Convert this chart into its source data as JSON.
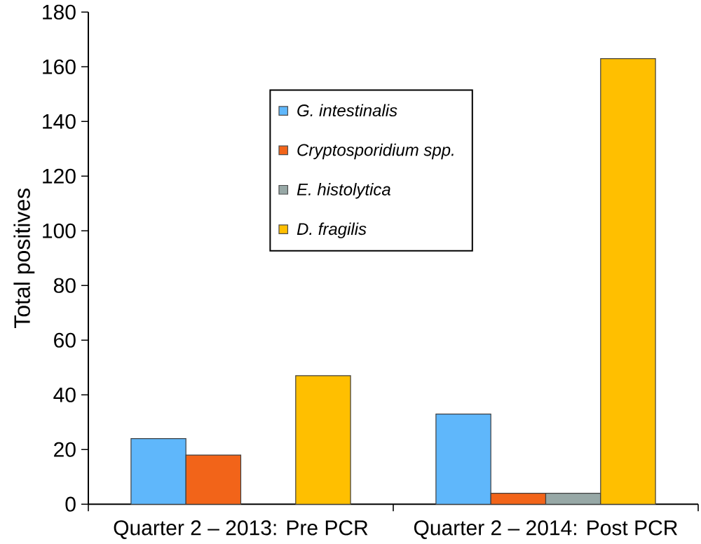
{
  "chart_data": {
    "type": "bar",
    "ylabel": "Total positives",
    "categories": [
      "Quarter 2 – 2013: Pre PCR",
      "Quarter 2 – 2014: Post PCR"
    ],
    "series": [
      {
        "name": "G. intestinalis",
        "color": "#5fb7fb",
        "values": [
          24,
          33
        ]
      },
      {
        "name": "Cryptosporidium spp.",
        "color": "#f26419",
        "values": [
          18,
          4
        ]
      },
      {
        "name": "E. histolytica",
        "color": "#97a8a6",
        "values": [
          0,
          4
        ]
      },
      {
        "name": "D. fragilis",
        "color": "#ffbf00",
        "values": [
          47,
          163
        ]
      }
    ],
    "ylim": [
      0,
      180
    ],
    "yticks": [
      0,
      20,
      40,
      60,
      80,
      100,
      120,
      140,
      160,
      180
    ],
    "grid": false,
    "legend": "top"
  }
}
